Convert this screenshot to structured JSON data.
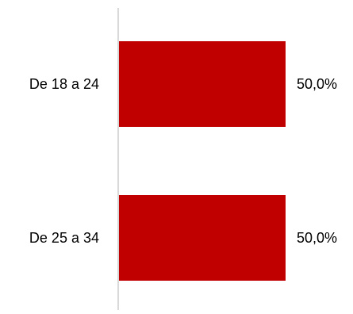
{
  "chart_data": {
    "type": "bar",
    "orientation": "horizontal",
    "categories": [
      "De 18 a 24",
      "De 25 a 34"
    ],
    "values": [
      50.0,
      50.0
    ],
    "value_labels": [
      "50,0%",
      "50,0%"
    ],
    "xlim": [
      0,
      100
    ],
    "grid": false,
    "legend": "none",
    "bar_color": "#C00000",
    "axis_color": "#D9D9D9"
  }
}
